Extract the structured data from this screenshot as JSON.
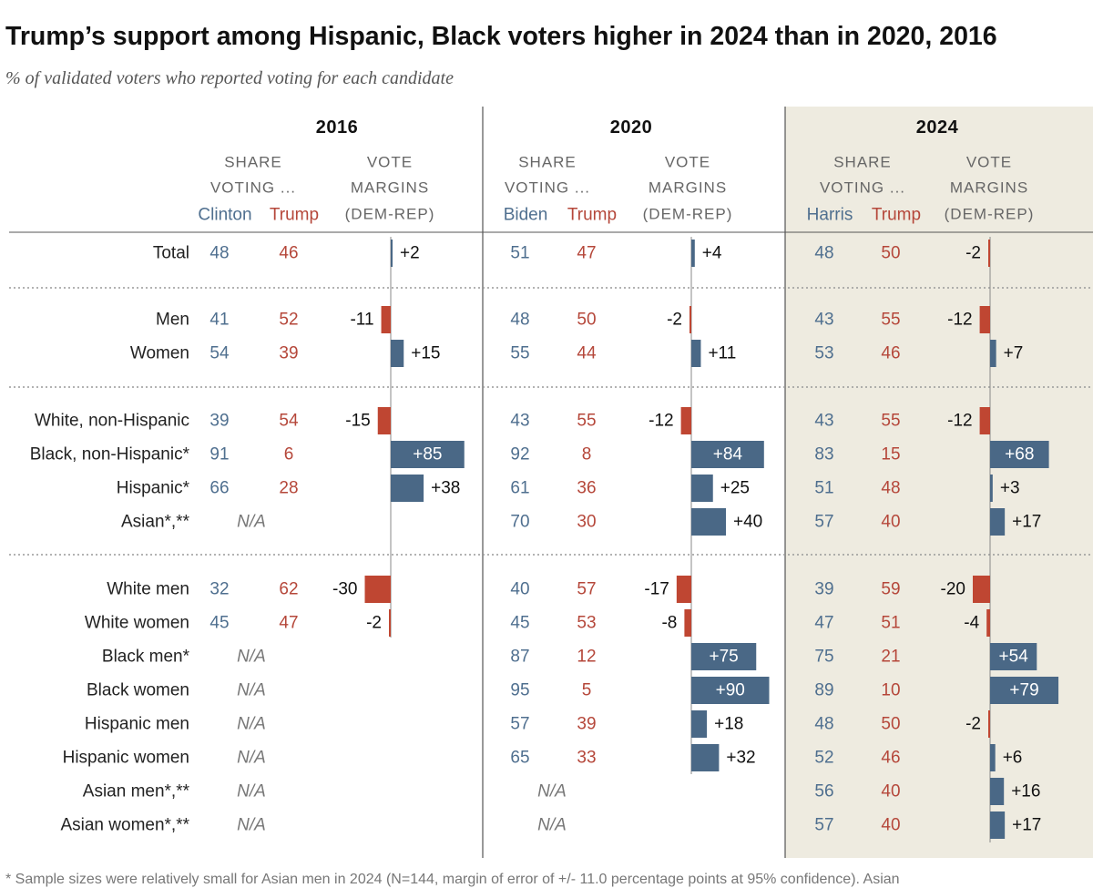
{
  "title": "Trump’s support among Hispanic, Black voters higher in 2024 than in 2020, 2016",
  "subtitle": "% of validated voters who reported voting for each candidate",
  "footnote": "* Sample sizes were relatively small for Asian men in 2024 (N=144, margin of error of +/- 11.0 percentage points at 95% confidence). Asian",
  "colors": {
    "dem": "#4f6f8f",
    "rep": "#b5473a",
    "bar_dem": "#4a6886",
    "bar_rep": "#bf4632",
    "highlight_bg": "#eeebe0",
    "grid": "#888888"
  },
  "chart_data": {
    "type": "table",
    "header": {
      "share": [
        "SHARE",
        "VOTING ..."
      ],
      "margin": [
        "VOTE",
        "MARGINS",
        "(DEM-REP)"
      ]
    },
    "na_label": "N/A",
    "years": [
      {
        "year": "2016",
        "dem": "Clinton",
        "rep": "Trump",
        "highlight": false
      },
      {
        "year": "2020",
        "dem": "Biden",
        "rep": "Trump",
        "highlight": false
      },
      {
        "year": "2024",
        "dem": "Harris",
        "rep": "Trump",
        "highlight": true
      }
    ],
    "groups": [
      {
        "rows": [
          {
            "label": "Total",
            "values": [
              [
                48,
                46,
                2
              ],
              [
                51,
                47,
                4
              ],
              [
                48,
                50,
                -2
              ]
            ]
          }
        ]
      },
      {
        "rows": [
          {
            "label": "Men",
            "values": [
              [
                41,
                52,
                -11
              ],
              [
                48,
                50,
                -2
              ],
              [
                43,
                55,
                -12
              ]
            ]
          },
          {
            "label": "Women",
            "values": [
              [
                54,
                39,
                15
              ],
              [
                55,
                44,
                11
              ],
              [
                53,
                46,
                7
              ]
            ]
          }
        ]
      },
      {
        "rows": [
          {
            "label": "White, non-Hispanic",
            "values": [
              [
                39,
                54,
                -15
              ],
              [
                43,
                55,
                -12
              ],
              [
                43,
                55,
                -12
              ]
            ]
          },
          {
            "label": "Black, non-Hispanic*",
            "values": [
              [
                91,
                6,
                85
              ],
              [
                92,
                8,
                84
              ],
              [
                83,
                15,
                68
              ]
            ]
          },
          {
            "label": "Hispanic*",
            "values": [
              [
                66,
                28,
                38
              ],
              [
                61,
                36,
                25
              ],
              [
                51,
                48,
                3
              ]
            ]
          },
          {
            "label": "Asian*,**",
            "values": [
              null,
              [
                70,
                30,
                40
              ],
              [
                57,
                40,
                17
              ]
            ]
          }
        ]
      },
      {
        "rows": [
          {
            "label": "White men",
            "values": [
              [
                32,
                62,
                -30
              ],
              [
                40,
                57,
                -17
              ],
              [
                39,
                59,
                -20
              ]
            ]
          },
          {
            "label": "White women",
            "values": [
              [
                45,
                47,
                -2
              ],
              [
                45,
                53,
                -8
              ],
              [
                47,
                51,
                -4
              ]
            ]
          },
          {
            "label": "Black men*",
            "values": [
              null,
              [
                87,
                12,
                75
              ],
              [
                75,
                21,
                54
              ]
            ]
          },
          {
            "label": "Black women",
            "values": [
              null,
              [
                95,
                5,
                90
              ],
              [
                89,
                10,
                79
              ]
            ]
          },
          {
            "label": "Hispanic men",
            "values": [
              null,
              [
                57,
                39,
                18
              ],
              [
                48,
                50,
                -2
              ]
            ]
          },
          {
            "label": "Hispanic women",
            "values": [
              null,
              [
                65,
                33,
                32
              ],
              [
                52,
                46,
                6
              ]
            ]
          },
          {
            "label": "Asian men*,**",
            "values": [
              null,
              null,
              [
                56,
                40,
                16
              ]
            ]
          },
          {
            "label": "Asian women*,**",
            "values": [
              null,
              null,
              [
                57,
                40,
                17
              ]
            ]
          }
        ]
      }
    ]
  }
}
